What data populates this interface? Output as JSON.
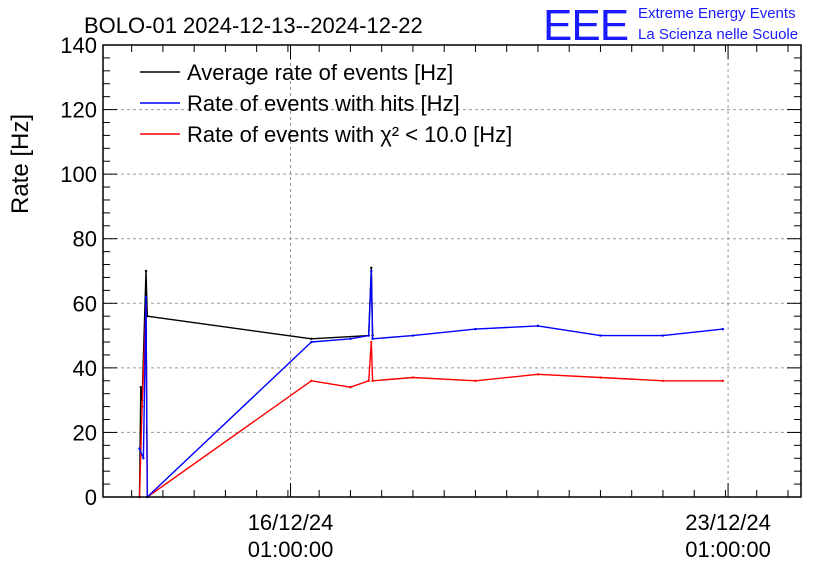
{
  "chart_data": {
    "type": "line",
    "title": "BOLO-01 2024-12-13--2024-12-22",
    "ylabel": "Rate [Hz]",
    "xlabel": "",
    "ylim": [
      0,
      140
    ],
    "yticks": [
      0,
      20,
      40,
      60,
      80,
      100,
      120,
      140
    ],
    "xlim": [
      "2024-12-13 01:00",
      "2024-12-24 05:00"
    ],
    "xticks": [
      {
        "x": "2024-12-16 01:00",
        "label_date": "16/12/24",
        "label_time": "01:00:00"
      },
      {
        "x": "2024-12-23 01:00",
        "label_date": "23/12/24",
        "label_time": "01:00:00"
      }
    ],
    "grid": true,
    "legend": "top-left",
    "series": [
      {
        "name": "Average rate of events [Hz]",
        "color": "#000000",
        "points": [
          [
            "2024-12-13 15:00",
            0
          ],
          [
            "2024-12-13 15:30",
            34
          ],
          [
            "2024-12-13 16:00",
            30
          ],
          [
            "2024-12-13 17:30",
            70
          ],
          [
            "2024-12-13 18:00",
            56
          ],
          [
            "2024-12-16 09:00",
            49
          ],
          [
            "2024-12-17 07:00",
            50
          ],
          [
            "2024-12-17 08:00",
            71
          ],
          [
            "2024-12-17 08:30",
            50
          ]
        ]
      },
      {
        "name": "Rate of events with hits [Hz]",
        "color": "#0000ff",
        "points": [
          [
            "2024-12-13 15:00",
            15
          ],
          [
            "2024-12-13 16:30",
            12
          ],
          [
            "2024-12-13 17:30",
            62
          ],
          [
            "2024-12-13 18:00",
            0
          ],
          [
            "2024-12-16 09:00",
            48
          ],
          [
            "2024-12-17 00:00",
            49
          ],
          [
            "2024-12-17 07:00",
            50
          ],
          [
            "2024-12-17 08:00",
            70
          ],
          [
            "2024-12-17 08:30",
            49
          ],
          [
            "2024-12-18 00:00",
            50
          ],
          [
            "2024-12-19 00:00",
            52
          ],
          [
            "2024-12-20 00:00",
            53
          ],
          [
            "2024-12-21 00:00",
            50
          ],
          [
            "2024-12-22 00:00",
            50
          ],
          [
            "2024-12-22 23:00",
            52
          ]
        ]
      },
      {
        "name": "Rate of events with χ² < 10.0 [Hz]",
        "color": "#ff0000",
        "points": [
          [
            "2024-12-13 15:00",
            0
          ],
          [
            "2024-12-13 16:00",
            28
          ],
          [
            "2024-12-13 17:30",
            59
          ],
          [
            "2024-12-13 18:00",
            0
          ],
          [
            "2024-12-16 09:00",
            36
          ],
          [
            "2024-12-17 00:00",
            34
          ],
          [
            "2024-12-17 07:00",
            36
          ],
          [
            "2024-12-17 08:00",
            48
          ],
          [
            "2024-12-17 08:30",
            36
          ],
          [
            "2024-12-18 00:00",
            37
          ],
          [
            "2024-12-19 00:00",
            36
          ],
          [
            "2024-12-20 00:00",
            38
          ],
          [
            "2024-12-21 00:00",
            37
          ],
          [
            "2024-12-22 00:00",
            36
          ],
          [
            "2024-12-22 23:00",
            36
          ]
        ]
      }
    ]
  },
  "logo": {
    "mark": "EEE",
    "line1": "Extreme Energy Events",
    "line2": "La Scienza nelle Scuole"
  }
}
